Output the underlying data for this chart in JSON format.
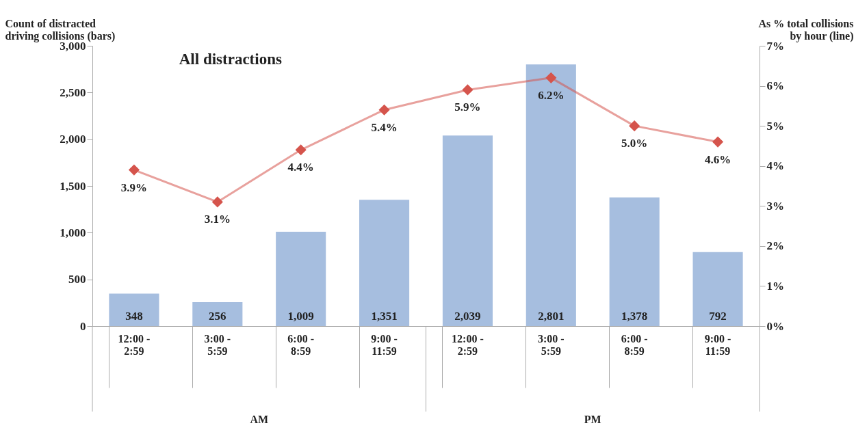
{
  "chart_data": {
    "type": "bar",
    "title": "All distractions",
    "ylabel": "Count of distracted driving collisions (bars)",
    "y2label": "As % total collisions by hour (line)",
    "categories": [
      "12:00 - 2:59",
      "3:00 - 5:59",
      "6:00 - 8:59",
      "9:00 - 11:59",
      "12:00 - 2:59",
      "3:00 - 5:59",
      "6:00 - 8:59",
      "9:00 - 11:59"
    ],
    "series": [
      {
        "color": "#a6bedf",
        "values": [
          348,
          256,
          1009,
          1351,
          2039,
          2801,
          1378,
          792
        ],
        "value_labels": [
          "348",
          "256",
          "1,009",
          "1,351",
          "2,039",
          "2,801",
          "1,378",
          "792"
        ]
      },
      {
        "type": "line",
        "axis": "y2",
        "color": "#d5544c",
        "marker": "diamond",
        "values": [
          3.9,
          3.1,
          4.4,
          5.4,
          5.9,
          6.2,
          5.0,
          4.6
        ],
        "value_labels": [
          "3.9%",
          "3.1%",
          "4.4%",
          "5.4%",
          "5.9%",
          "6.2%",
          "5.0%",
          "4.6%"
        ]
      }
    ],
    "ylim": [
      0,
      3000
    ],
    "yticks": [
      0,
      500,
      {
        "value": 1000,
        "label": "1,000"
      },
      {
        "value": 1500,
        "label": "1,500"
      },
      {
        "value": 2000,
        "label": "2,000"
      },
      {
        "value": 2500,
        "label": "2,500"
      },
      {
        "value": 3000,
        "label": "3,000"
      }
    ],
    "y2lim": [
      0,
      7
    ],
    "y2ticks": [
      {
        "value": 0,
        "label": "0%"
      },
      {
        "value": 1,
        "label": "1%"
      },
      {
        "value": 2,
        "label": "2%"
      },
      {
        "value": 3,
        "label": "3%"
      },
      {
        "value": 4,
        "label": "4%"
      },
      {
        "value": 5,
        "label": "5%"
      },
      {
        "value": 6,
        "label": "6%"
      },
      {
        "value": 7,
        "label": "7%"
      }
    ],
    "grid": false,
    "annotations": [
      "AM",
      "PM"
    ]
  }
}
